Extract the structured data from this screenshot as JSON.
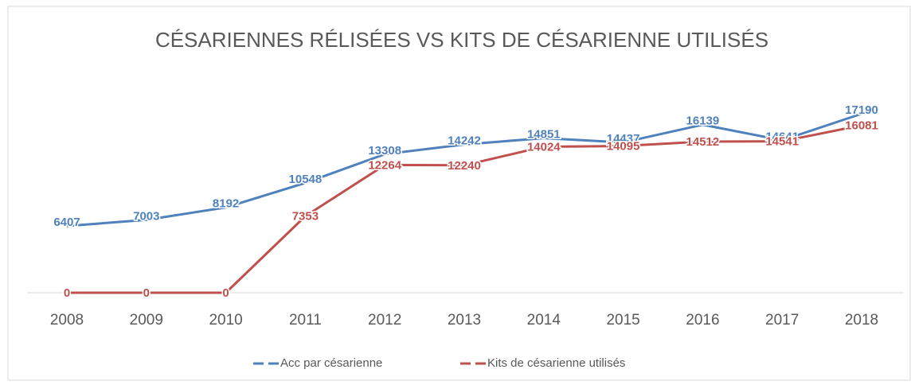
{
  "chart_data": {
    "type": "line",
    "title": "CÉSARIENNES RÉLISÉES VS KITS DE CÉSARIENNE UTILISÉS",
    "categories": [
      "2008",
      "2009",
      "2010",
      "2011",
      "2012",
      "2013",
      "2014",
      "2015",
      "2016",
      "2017",
      "2018"
    ],
    "series": [
      {
        "name": "Acc par césarienne",
        "color": "#4f81bd",
        "values": [
          6407,
          7003,
          8192,
          10548,
          13308,
          14242,
          14851,
          14437,
          16139,
          14641,
          17190
        ]
      },
      {
        "name": "Kits de césarienne utilisés",
        "color": "#c0504d",
        "values": [
          0,
          0,
          0,
          7353,
          12264,
          12240,
          14024,
          14095,
          14512,
          14541,
          16081
        ]
      }
    ]
  }
}
